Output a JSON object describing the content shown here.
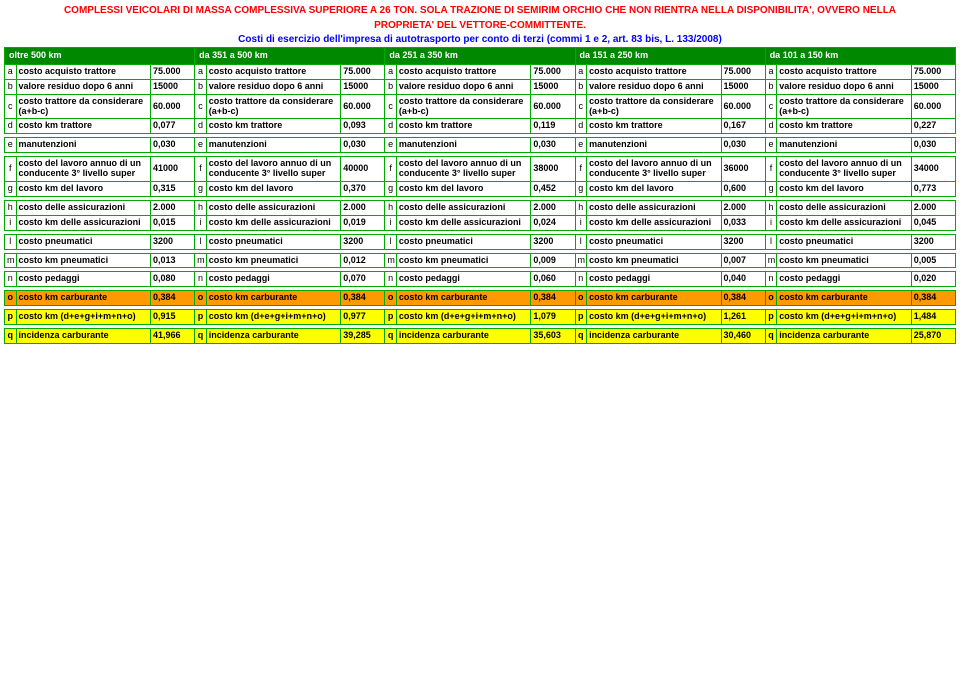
{
  "header": {
    "title_lines": [
      "COMPLESSI VEICOLARI DI MASSA COMPLESSIVA SUPERIORE A 26 TON. SOLA TRAZIONE DI SEMIRIM ORCHIO CHE NON RIENTRA NELLA DISPONIBILITA', OVVERO NELLA",
      "PROPRIETA' DEL VETTORE-COMMITTENTE."
    ],
    "subtitle": "Costi di esercizio dell'impresa di autotrasporto per conto di terzi (commi 1 e 2, art. 83 bis, L. 133/2008)"
  },
  "distance_bands": [
    "oltre 500 km",
    "da 351 a 500 km",
    "da 251 a 350 km",
    "da 151 a 250 km",
    "da 101 a 150 km"
  ],
  "rows": [
    {
      "key": "a",
      "label": "costo acquisto trattore",
      "vals": [
        "75.000",
        "75.000",
        "75.000",
        "75.000",
        "75.000"
      ]
    },
    {
      "key": "b",
      "label": "valore residuo dopo 6 anni",
      "vals": [
        "15000",
        "15000",
        "15000",
        "15000",
        "15000"
      ]
    },
    {
      "key": "c",
      "label": "costo trattore da considerare (a+b-c)",
      "vals": [
        "60.000",
        "60.000",
        "60.000",
        "60.000",
        "60.000"
      ]
    },
    {
      "key": "d",
      "label": "costo km trattore",
      "vals": [
        "0,077",
        "0,093",
        "0,119",
        "0,167",
        "0,227"
      ]
    },
    {
      "gap": true
    },
    {
      "key": "e",
      "label": "manutenzioni",
      "vals": [
        "0,030",
        "0,030",
        "0,030",
        "0,030",
        "0,030"
      ]
    },
    {
      "gap": true
    },
    {
      "key": "f",
      "label": "costo del lavoro annuo di un conducente 3° livello super",
      "label_alt": "costo del lavoro annuo di un conducente 3° livello super",
      "vals": [
        "41000",
        "40000",
        "38000",
        "36000",
        "34000"
      ]
    },
    {
      "key": "g",
      "label": "costo km del lavoro",
      "vals": [
        "0,315",
        "0,370",
        "0,452",
        "0,600",
        "0,773"
      ]
    },
    {
      "gap": true
    },
    {
      "key": "h",
      "label": "costo delle assicurazioni",
      "vals": [
        "2.000",
        "2.000",
        "2.000",
        "2.000",
        "2.000"
      ]
    },
    {
      "key": "i",
      "label": "costo km delle assicurazioni",
      "vals": [
        "0,015",
        "0,019",
        "0,024",
        "0,033",
        "0,045"
      ]
    },
    {
      "gap": true
    },
    {
      "key": "l",
      "label": "costo pneumatici",
      "vals": [
        "3200",
        "3200",
        "3200",
        "3200",
        "3200"
      ]
    },
    {
      "gap": true
    },
    {
      "key": "m",
      "label": "costo km pneumatici",
      "vals": [
        "0,013",
        "0,012",
        "0,009",
        "0,007",
        "0,005"
      ]
    },
    {
      "gap": true
    },
    {
      "key": "n",
      "label": "costo pedaggi",
      "vals": [
        "0,080",
        "0,070",
        "0,060",
        "0,040",
        "0,020"
      ]
    },
    {
      "gap": true
    },
    {
      "key": "o",
      "label": "costo km carburante",
      "vals": [
        "0,384",
        "0,384",
        "0,384",
        "0,384",
        "0,384"
      ],
      "hl": "orange"
    },
    {
      "gap": true
    },
    {
      "key": "p",
      "label": "costo km (d+e+g+i+m+n+o)",
      "vals": [
        "0,915",
        "0,977",
        "1,079",
        "1,261",
        "1,484"
      ],
      "hl": "yellow"
    },
    {
      "gap": true
    },
    {
      "key": "q",
      "label": "incidenza carburante",
      "vals": [
        "41,966",
        "39,285",
        "35,603",
        "30,460",
        "25,870"
      ],
      "hl": "yellow"
    }
  ],
  "colors": {
    "title": "#ff0000",
    "subtitle": "#0000ff",
    "header_bg": "#008800",
    "header_fg": "#ffffff",
    "border": "#00aa00",
    "hl_orange": "#ff9900",
    "hl_yellow": "#ffff00"
  }
}
